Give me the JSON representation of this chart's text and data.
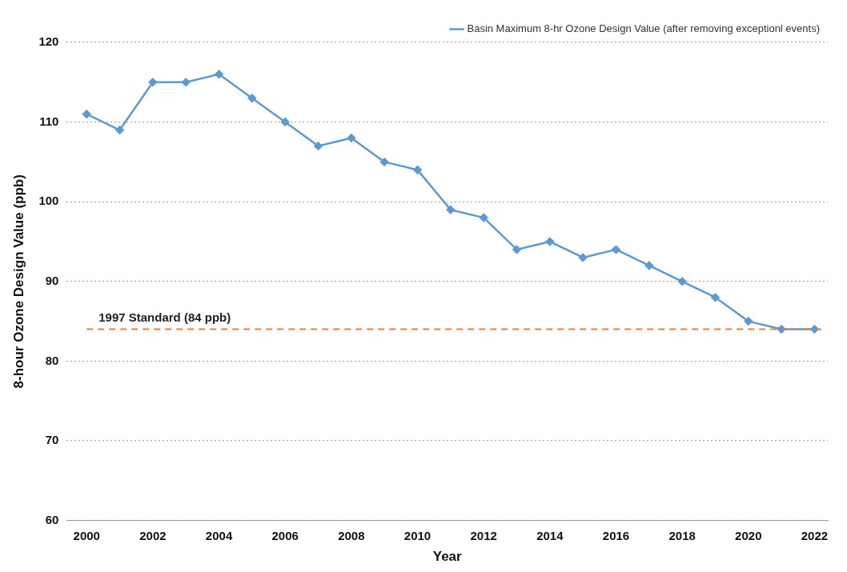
{
  "chart_data": {
    "type": "line",
    "xlabel": "Year",
    "ylabel": "8-hour Ozone Design Value (ppb)",
    "x": [
      2000,
      2001,
      2002,
      2003,
      2004,
      2005,
      2006,
      2007,
      2008,
      2009,
      2010,
      2011,
      2012,
      2013,
      2014,
      2015,
      2016,
      2017,
      2018,
      2019,
      2020,
      2021,
      2022
    ],
    "series": [
      {
        "name": "Basin Maximum 8-hr Ozone Design Value (after removing exceptionl events)",
        "color": "#5b9bd5",
        "values": [
          111,
          109,
          115,
          115,
          116,
          113,
          110,
          107,
          108,
          105,
          104,
          99,
          98,
          94,
          95,
          93,
          94,
          92,
          90,
          88,
          85,
          84,
          84
        ]
      }
    ],
    "xlim": [
      1999.4,
      2022.4
    ],
    "xticks": [
      2000,
      2002,
      2004,
      2006,
      2008,
      2010,
      2012,
      2014,
      2016,
      2018,
      2020,
      2022
    ],
    "ylim": [
      60,
      120
    ],
    "yticks": [
      60,
      70,
      80,
      90,
      100,
      110,
      120
    ],
    "ref_lines": [
      {
        "axis": "y",
        "value": 84,
        "label": "1997 Standard (84 ppb)",
        "color": "#ed7d31",
        "line_style": "dashed"
      }
    ],
    "grid": "y",
    "legend": "top right",
    "marker": "diamond",
    "line_style": "solid"
  }
}
